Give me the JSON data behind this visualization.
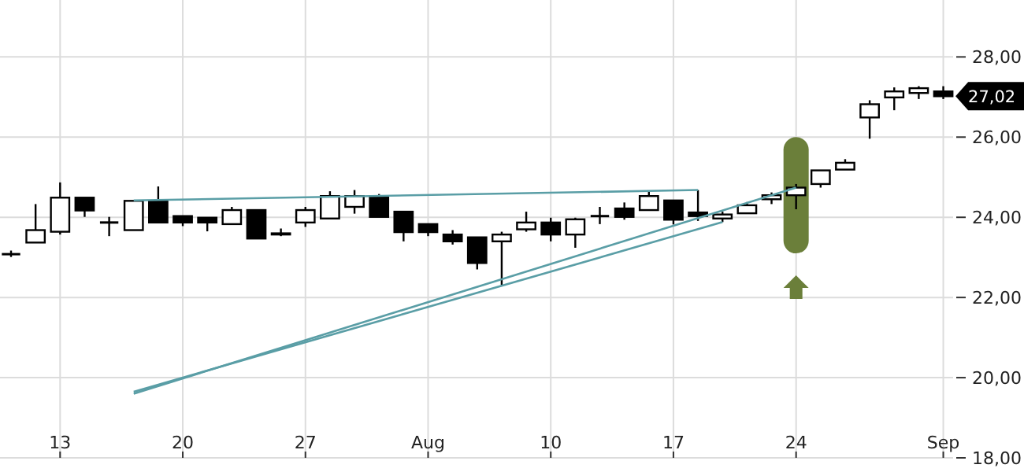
{
  "chart_data": {
    "type": "candlestick",
    "categories": [
      null,
      null,
      "13",
      null,
      null,
      null,
      null,
      "20",
      null,
      null,
      null,
      null,
      "27",
      null,
      null,
      null,
      null,
      "Aug",
      null,
      null,
      null,
      null,
      "10",
      null,
      null,
      null,
      null,
      "17",
      null,
      null,
      null,
      null,
      "24",
      null,
      null,
      null,
      null,
      null,
      "Sep"
    ],
    "ohlc": [
      [
        23.08,
        23.17,
        23.01,
        23.08
      ],
      [
        23.37,
        24.33,
        23.37,
        23.68
      ],
      [
        23.64,
        24.87,
        23.57,
        24.49
      ],
      [
        24.49,
        24.49,
        24.01,
        24.17
      ],
      [
        23.87,
        24.01,
        23.53,
        23.87
      ],
      [
        23.68,
        24.41,
        23.68,
        24.41
      ],
      [
        24.41,
        24.77,
        23.87,
        23.87
      ],
      [
        24.03,
        24.03,
        23.78,
        23.87
      ],
      [
        23.99,
        23.99,
        23.65,
        23.87
      ],
      [
        23.83,
        24.26,
        23.83,
        24.18
      ],
      [
        24.18,
        24.18,
        23.47,
        23.47
      ],
      [
        23.6,
        23.72,
        23.53,
        23.57
      ],
      [
        23.87,
        24.26,
        23.76,
        24.18
      ],
      [
        23.97,
        24.65,
        23.97,
        24.53
      ],
      [
        24.26,
        24.68,
        24.09,
        24.53
      ],
      [
        24.53,
        24.58,
        24.01,
        24.01
      ],
      [
        24.14,
        24.14,
        23.4,
        23.63
      ],
      [
        23.83,
        23.83,
        23.53,
        23.63
      ],
      [
        23.57,
        23.68,
        23.32,
        23.4
      ],
      [
        23.5,
        23.5,
        22.7,
        22.86
      ],
      [
        23.4,
        23.64,
        22.31,
        23.57
      ],
      [
        23.7,
        24.14,
        23.64,
        23.87
      ],
      [
        23.87,
        23.99,
        23.4,
        23.57
      ],
      [
        23.57,
        23.99,
        23.24,
        23.95
      ],
      [
        24.03,
        24.26,
        23.83,
        24.03
      ],
      [
        24.22,
        24.37,
        23.94,
        24.01
      ],
      [
        24.18,
        24.65,
        24.18,
        24.53
      ],
      [
        24.42,
        24.42,
        23.82,
        23.94
      ],
      [
        24.12,
        24.68,
        23.91,
        24.03
      ],
      [
        23.97,
        24.14,
        23.88,
        24.07
      ],
      [
        24.1,
        24.38,
        24.1,
        24.3
      ],
      [
        24.45,
        24.62,
        24.33,
        24.55
      ],
      [
        24.55,
        24.83,
        24.2,
        24.74
      ],
      [
        24.83,
        25.17,
        24.74,
        25.17
      ],
      [
        25.19,
        25.45,
        25.19,
        25.36
      ],
      [
        26.49,
        26.92,
        25.96,
        26.82
      ],
      [
        26.99,
        27.24,
        26.67,
        27.14
      ],
      [
        27.1,
        27.27,
        26.95,
        27.22
      ],
      [
        27.14,
        27.27,
        26.95,
        27.02
      ]
    ],
    "series": [
      {
        "type": "line",
        "color": "#5a9ea6",
        "values": [
          null,
          null,
          null,
          null,
          null,
          24.42,
          null,
          null,
          null,
          null,
          null,
          null,
          null,
          null,
          null,
          null,
          null,
          null,
          null,
          null,
          null,
          null,
          null,
          null,
          null,
          null,
          null,
          null,
          24.68,
          null,
          null,
          null,
          null,
          null,
          null,
          null,
          null,
          null,
          null
        ]
      },
      {
        "type": "line",
        "color": "#5a9ea6",
        "values": [
          null,
          null,
          null,
          null,
          null,
          19.65,
          null,
          null,
          null,
          null,
          null,
          null,
          null,
          null,
          null,
          null,
          null,
          null,
          null,
          null,
          null,
          null,
          null,
          null,
          null,
          null,
          null,
          null,
          null,
          23.88,
          null,
          null,
          null,
          null,
          null,
          null,
          null,
          null,
          null
        ]
      },
      {
        "type": "line",
        "color": "#5a9ea6",
        "values": [
          null,
          null,
          null,
          null,
          null,
          19.6,
          null,
          null,
          null,
          null,
          null,
          null,
          null,
          null,
          null,
          null,
          null,
          null,
          null,
          null,
          null,
          null,
          null,
          null,
          null,
          null,
          null,
          null,
          null,
          null,
          null,
          null,
          24.74,
          null,
          null,
          null,
          null,
          null,
          null
        ]
      }
    ],
    "ylim": [
      18,
      29.42
    ],
    "yticks": [
      {
        "value": 18,
        "label": "18,00"
      },
      {
        "value": 20,
        "label": "20,00"
      },
      {
        "value": 22,
        "label": "22,00"
      },
      {
        "value": 24,
        "label": "24,00"
      },
      {
        "value": 26,
        "label": "26,00"
      },
      {
        "value": 28,
        "label": "28,00"
      }
    ],
    "grid": true,
    "annotations": [
      {
        "text": "27,02",
        "x": "Sep",
        "y": 27.02
      }
    ]
  }
}
